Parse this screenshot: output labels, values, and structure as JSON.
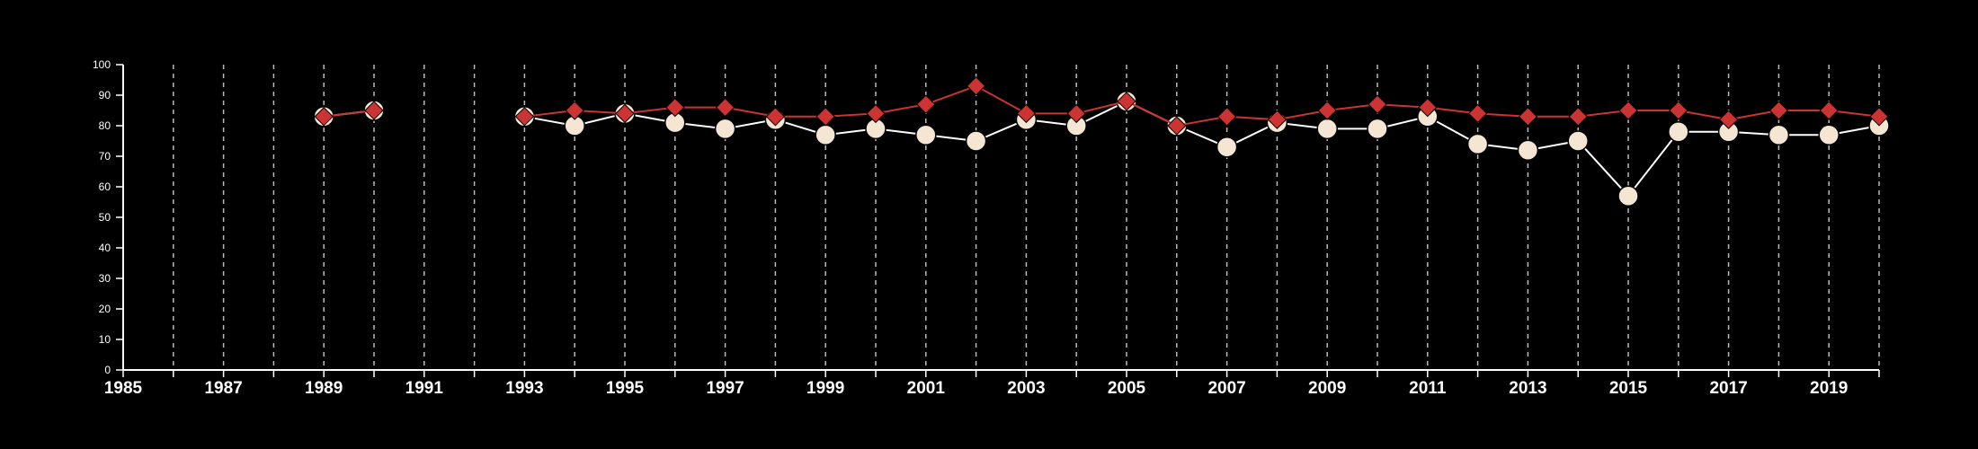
{
  "chart_data": {
    "type": "line",
    "title": "",
    "xlabel": "",
    "ylabel": "",
    "xlim": [
      1985,
      2020
    ],
    "ylim": [
      0,
      100
    ],
    "y_ticks": [
      0,
      10,
      20,
      30,
      40,
      50,
      60,
      70,
      80,
      90,
      100
    ],
    "x_tick_labels": [
      "1985",
      "1987",
      "1989",
      "1991",
      "1993",
      "1995",
      "1997",
      "1999",
      "2001",
      "2003",
      "2005",
      "2007",
      "2009",
      "2011",
      "2013",
      "2015",
      "2017",
      "2019"
    ],
    "grid": "vertical dashed lines at every year",
    "legend": "none",
    "series": [
      {
        "marker": "circle",
        "color": "#f5e6d3",
        "line_color": "#ffffff",
        "points": [
          [
            1989,
            83
          ],
          [
            1990,
            85
          ],
          [
            1993,
            83
          ],
          [
            1994,
            80
          ],
          [
            1995,
            84
          ],
          [
            1996,
            81
          ],
          [
            1997,
            79
          ],
          [
            1998,
            82
          ],
          [
            1999,
            77
          ],
          [
            2000,
            79
          ],
          [
            2001,
            77
          ],
          [
            2002,
            75
          ],
          [
            2003,
            82
          ],
          [
            2004,
            80
          ],
          [
            2005,
            88
          ],
          [
            2006,
            80
          ],
          [
            2007,
            73
          ],
          [
            2008,
            81
          ],
          [
            2009,
            79
          ],
          [
            2010,
            79
          ],
          [
            2011,
            83
          ],
          [
            2012,
            74
          ],
          [
            2013,
            72
          ],
          [
            2014,
            75
          ],
          [
            2015,
            57
          ],
          [
            2016,
            78
          ],
          [
            2017,
            78
          ],
          [
            2018,
            77
          ],
          [
            2019,
            77
          ],
          [
            2020,
            80
          ]
        ]
      },
      {
        "marker": "diamond",
        "color": "#cc3333",
        "line_color": "#cc3333",
        "points": [
          [
            1989,
            83
          ],
          [
            1990,
            85
          ],
          [
            1993,
            83
          ],
          [
            1994,
            85
          ],
          [
            1995,
            84
          ],
          [
            1996,
            86
          ],
          [
            1997,
            86
          ],
          [
            1998,
            83
          ],
          [
            1999,
            83
          ],
          [
            2000,
            84
          ],
          [
            2001,
            87
          ],
          [
            2002,
            93
          ],
          [
            2003,
            84
          ],
          [
            2004,
            84
          ],
          [
            2005,
            88
          ],
          [
            2006,
            80
          ],
          [
            2007,
            83
          ],
          [
            2008,
            82
          ],
          [
            2009,
            85
          ],
          [
            2010,
            87
          ],
          [
            2011,
            86
          ],
          [
            2012,
            84
          ],
          [
            2013,
            83
          ],
          [
            2014,
            83
          ],
          [
            2015,
            85
          ],
          [
            2016,
            85
          ],
          [
            2017,
            82
          ],
          [
            2018,
            85
          ],
          [
            2019,
            85
          ],
          [
            2020,
            83
          ]
        ]
      }
    ]
  }
}
